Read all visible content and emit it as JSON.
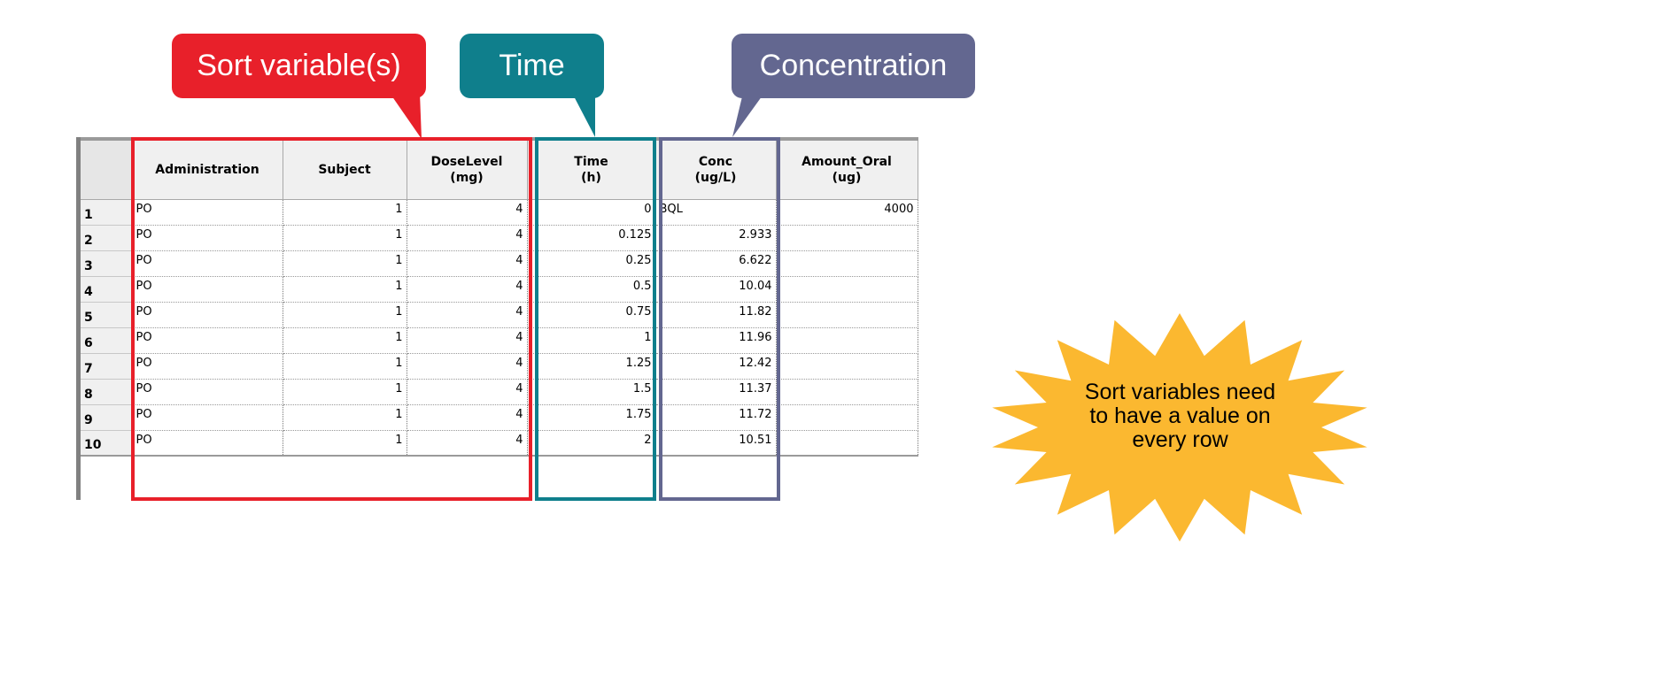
{
  "callouts": {
    "sort": {
      "label": "Sort variable(s)",
      "color": "#e8202a"
    },
    "time": {
      "label": "Time",
      "color": "#0f7f8c"
    },
    "concentration": {
      "label": "Concentration",
      "color": "#636790"
    }
  },
  "grid": {
    "columns": [
      {
        "line1": "Administration",
        "line2": ""
      },
      {
        "line1": "Subject",
        "line2": ""
      },
      {
        "line1": "DoseLevel",
        "line2": "(mg)"
      },
      {
        "line1": "Time",
        "line2": "(h)"
      },
      {
        "line1": "Conc",
        "line2": "(ug/L)"
      },
      {
        "line1": "Amount_Oral",
        "line2": "(ug)"
      }
    ],
    "rows": [
      {
        "num": "1",
        "cells": [
          "PO",
          "1",
          "4",
          "0",
          "BQL",
          "4000"
        ]
      },
      {
        "num": "2",
        "cells": [
          "PO",
          "1",
          "4",
          "0.125",
          "2.933",
          ""
        ]
      },
      {
        "num": "3",
        "cells": [
          "PO",
          "1",
          "4",
          "0.25",
          "6.622",
          ""
        ]
      },
      {
        "num": "4",
        "cells": [
          "PO",
          "1",
          "4",
          "0.5",
          "10.04",
          ""
        ]
      },
      {
        "num": "5",
        "cells": [
          "PO",
          "1",
          "4",
          "0.75",
          "11.82",
          ""
        ]
      },
      {
        "num": "6",
        "cells": [
          "PO",
          "1",
          "4",
          "1",
          "11.96",
          ""
        ]
      },
      {
        "num": "7",
        "cells": [
          "PO",
          "1",
          "4",
          "1.25",
          "12.42",
          ""
        ]
      },
      {
        "num": "8",
        "cells": [
          "PO",
          "1",
          "4",
          "1.5",
          "11.37",
          ""
        ]
      },
      {
        "num": "9",
        "cells": [
          "PO",
          "1",
          "4",
          "1.75",
          "11.72",
          ""
        ]
      },
      {
        "num": "10",
        "cells": [
          "PO",
          "1",
          "4",
          "2",
          "10.51",
          ""
        ]
      }
    ]
  },
  "note": {
    "line1": "Sort variables need",
    "line2": "to have a value on",
    "line3": "every row",
    "color": "#fbb830"
  }
}
